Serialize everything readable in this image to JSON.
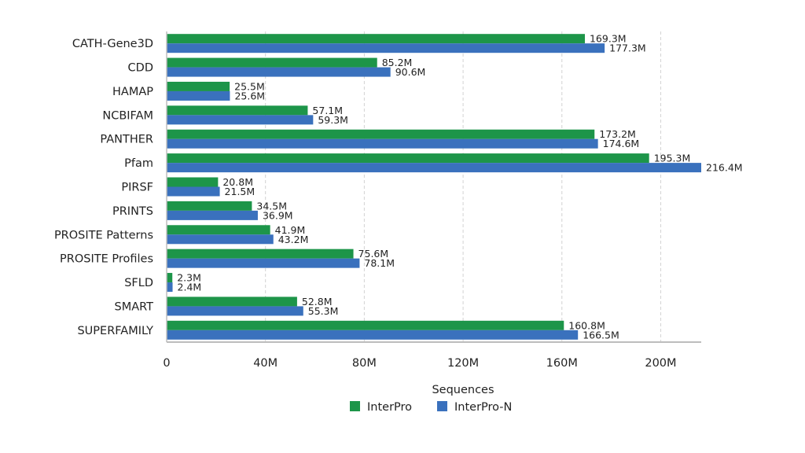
{
  "chart_data": {
    "type": "bar",
    "orientation": "horizontal",
    "categories": [
      "CATH-Gene3D",
      "CDD",
      "HAMAP",
      "NCBIFAM",
      "PANTHER",
      "Pfam",
      "PIRSF",
      "PRINTS",
      "PROSITE Patterns",
      "PROSITE Profiles",
      "SFLD",
      "SMART",
      "SUPERFAMILY"
    ],
    "series": [
      {
        "name": "InterPro",
        "color": "#1d9549",
        "values": [
          169.3,
          85.2,
          25.5,
          57.1,
          173.2,
          195.3,
          20.8,
          34.5,
          41.9,
          75.6,
          2.3,
          52.8,
          160.8
        ],
        "labels": [
          "169.3M",
          "85.2M",
          "25.5M",
          "57.1M",
          "173.2M",
          "195.3M",
          "20.8M",
          "34.5M",
          "41.9M",
          "75.6M",
          "2.3M",
          "52.8M",
          "160.8M"
        ]
      },
      {
        "name": "InterPro-N",
        "color": "#3a71bd",
        "values": [
          177.3,
          90.6,
          25.6,
          59.3,
          174.6,
          216.4,
          21.5,
          36.9,
          43.2,
          78.1,
          2.4,
          55.3,
          166.5
        ],
        "labels": [
          "177.3M",
          "90.6M",
          "25.6M",
          "59.3M",
          "174.6M",
          "216.4M",
          "21.5M",
          "36.9M",
          "43.2M",
          "78.1M",
          "2.4M",
          "55.3M",
          "166.5M"
        ]
      }
    ],
    "xlabel": "Sequences",
    "ylabel": "",
    "xlim": [
      0,
      216.4
    ],
    "xticks": [
      0,
      40,
      80,
      120,
      160,
      200
    ],
    "xtick_labels": [
      "0",
      "40M",
      "80M",
      "120M",
      "160M",
      "200M"
    ],
    "grid": "vertical-dashed",
    "legend": "bottom-center"
  }
}
